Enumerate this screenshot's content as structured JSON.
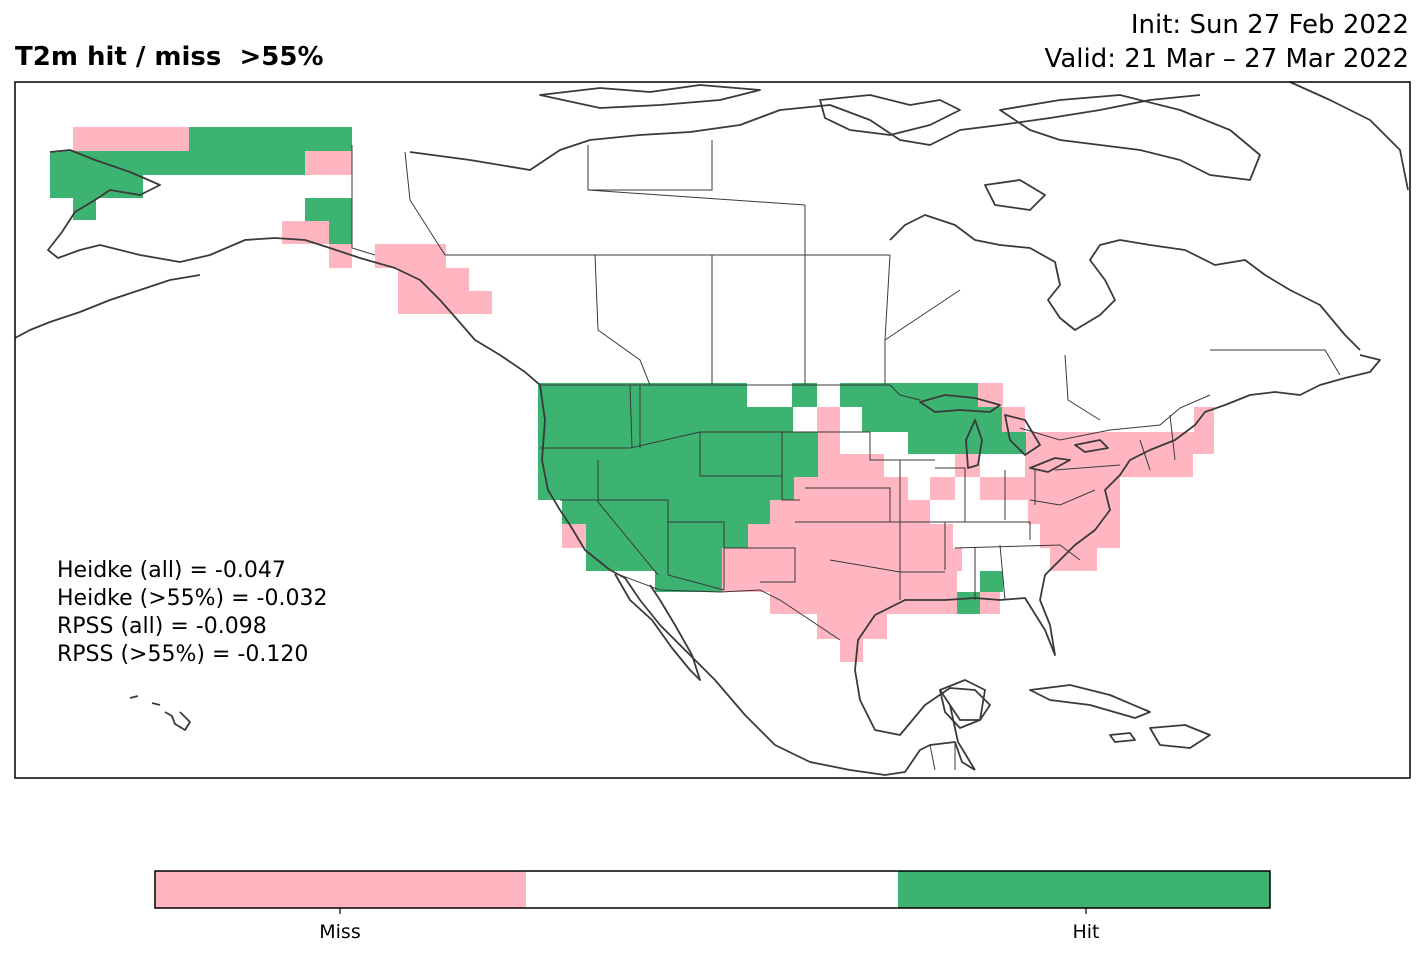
{
  "title": "T2m hit / miss  >55%",
  "init": "Init: Sun 27 Feb 2022",
  "valid": "Valid: 21 Mar – 27 Mar 2022",
  "stats": [
    "Heidke (all) = -0.047",
    "Heidke (>55%) = -0.032",
    "RPSS (all) = -0.098",
    "RPSS (>55%) = -0.120"
  ],
  "colorbar": {
    "segments": [
      {
        "label": "Miss",
        "color": "#ffb6c1"
      },
      {
        "label": "",
        "color": "#ffffff"
      },
      {
        "label": "Hit",
        "color": "#3cb371"
      }
    ],
    "tick_labels": [
      "Miss",
      "Hit"
    ]
  },
  "colors": {
    "miss": "#ffb6c1",
    "hit": "#3cb371",
    "coastline": "#3a3a3a"
  }
}
